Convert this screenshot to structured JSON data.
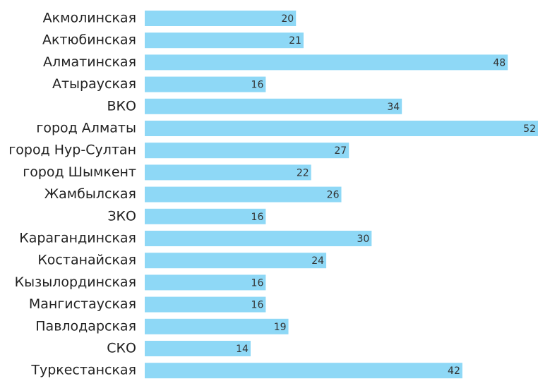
{
  "chart_data": {
    "type": "bar",
    "orientation": "horizontal",
    "categories": [
      "Акмолинская",
      "Актюбинская",
      "Алматинская",
      "Атырауская",
      "ВКО",
      "город Алматы",
      "город Нур-Султан",
      "город Шымкент",
      "Жамбылская",
      "ЗКО",
      "Карагандинская",
      "Костанайская",
      "Кызылординская",
      "Мангистауская",
      "Павлодарская",
      "СКО",
      "Туркестанская"
    ],
    "values": [
      20,
      21,
      48,
      16,
      34,
      52,
      27,
      22,
      26,
      16,
      30,
      24,
      16,
      16,
      19,
      14,
      42
    ],
    "color": "#8ed8f6",
    "xlim": [
      0,
      52
    ],
    "grid": false
  }
}
